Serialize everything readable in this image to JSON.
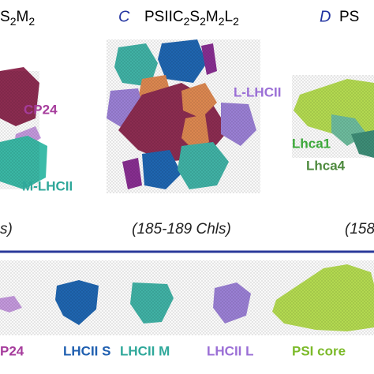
{
  "panels": [
    {
      "title_parts": [
        {
          "text": "S"
        },
        {
          "sub": "2"
        },
        {
          "text": "M"
        },
        {
          "sub": "2"
        }
      ],
      "labels": [
        "CP24",
        "M-LHCII"
      ],
      "chls": "s)"
    },
    {
      "letter": "C",
      "title_parts": [
        {
          "text": "PSIIC"
        },
        {
          "sub": "2"
        },
        {
          "text": "S"
        },
        {
          "sub": "2"
        },
        {
          "text": "M"
        },
        {
          "sub": "2"
        },
        {
          "text": "L"
        },
        {
          "sub": "2"
        }
      ],
      "labels": [
        "L-LHCII"
      ],
      "chls": "(185-189 Chls)"
    },
    {
      "letter": "D",
      "title_parts": [
        {
          "text": "PS"
        }
      ],
      "labels": [
        "Lhca1",
        "Lhca4"
      ],
      "chls": "(158"
    }
  ],
  "legend": [
    "P24",
    "LHCII S",
    "LHCII M",
    "LHCII L",
    "PSI core"
  ]
}
